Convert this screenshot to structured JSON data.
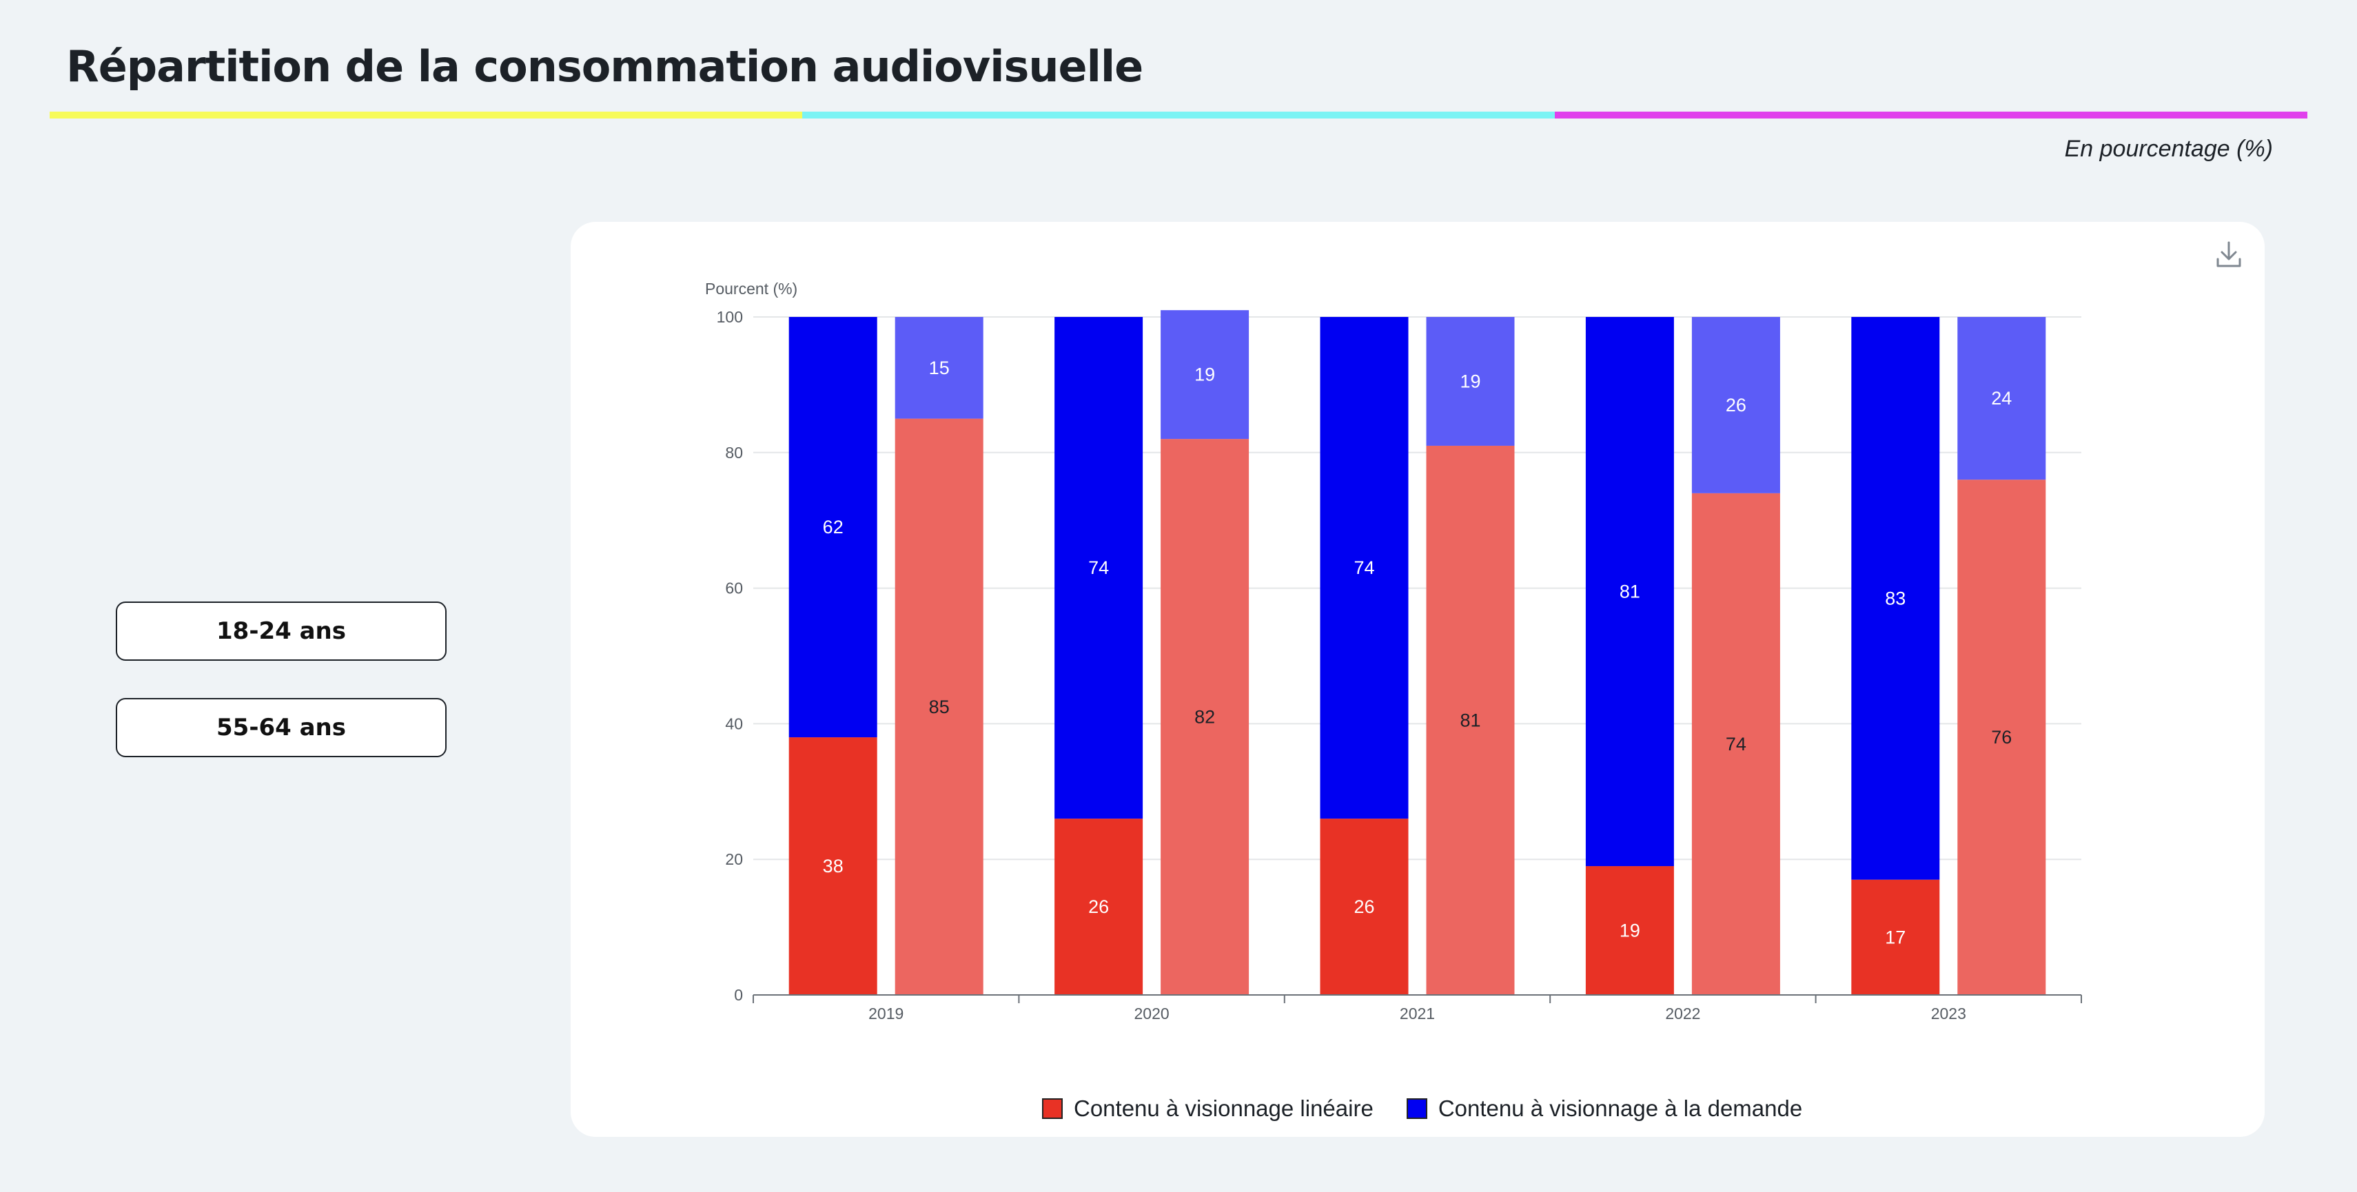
{
  "header": {
    "title": "Répartition de la consommation audiovisuelle",
    "rule_colors": [
      "#f7fb59",
      "#7bf3f4",
      "#e040ec"
    ],
    "unit_note": "En pourcentage (%)"
  },
  "filters": {
    "buttons": [
      {
        "label": "18-24 ans"
      },
      {
        "label": "55-64 ans"
      }
    ]
  },
  "chart_toolbar": {
    "download_icon": "download-icon"
  },
  "chart_data": {
    "type": "bar",
    "stacked": true,
    "categories": [
      "2019",
      "2020",
      "2021",
      "2022",
      "2023"
    ],
    "groups": [
      "18-24 ans",
      "55-64 ans"
    ],
    "ylabel": "Pourcent (%)",
    "ylim": [
      0,
      100
    ],
    "yticks": [
      0,
      20,
      40,
      60,
      80,
      100
    ],
    "grid": true,
    "legend_position": "bottom",
    "series": [
      {
        "name": "Contenu à visionnage linéaire",
        "color": "#e83225",
        "light_color": "#ec6660",
        "values": {
          "18-24 ans": [
            38,
            26,
            26,
            19,
            17
          ],
          "55-64 ans": [
            85,
            82,
            81,
            74,
            76
          ]
        }
      },
      {
        "name": "Contenu à visionnage à la demande",
        "color": "#0000f2",
        "light_color": "#5c5cf7",
        "values": {
          "18-24 ans": [
            62,
            74,
            74,
            81,
            83
          ],
          "55-64 ans": [
            15,
            19,
            19,
            26,
            24
          ]
        }
      }
    ]
  },
  "legend": {
    "items": [
      {
        "label": "Contenu à visionnage linéaire",
        "color": "#e83225"
      },
      {
        "label": "Contenu à visionnage à la demande",
        "color": "#0000f2"
      }
    ]
  }
}
